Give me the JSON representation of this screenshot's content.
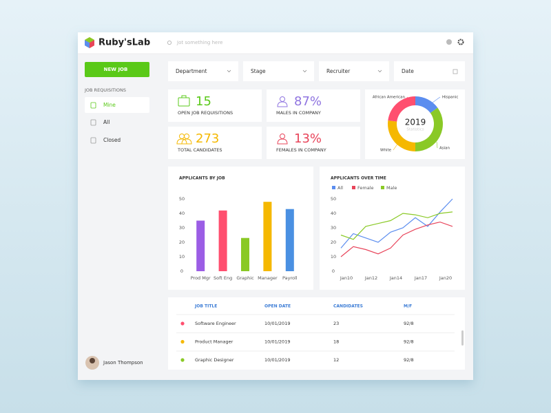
{
  "header": {
    "logo": "Ruby'sLab",
    "search_placeholder": "Jot something here"
  },
  "sidebar": {
    "button": "NEW JOB",
    "section": "JOB REQUISITIONS",
    "nav": [
      "Mine",
      "All",
      "Closed"
    ],
    "user": "Jason Thompson"
  },
  "filters": [
    "Department",
    "Stage",
    "Recruiter",
    "Date"
  ],
  "stats": [
    {
      "value": 15,
      "label": "OPEN JOB REQUISITIONS",
      "color": "#5ac918"
    },
    {
      "value": "87%",
      "label": "MALES IN COMPANY",
      "color": "#8f74e0"
    },
    {
      "value": 273,
      "label": "TOTAL CANDIDATES",
      "color": "#f5b800"
    },
    {
      "value": "13%",
      "label": "FEMALES IN COMPANY",
      "color": "#e8445a"
    }
  ],
  "chart_data": [
    {
      "type": "donut",
      "center_title": "2019",
      "center_subtitle": "Statistics",
      "categories": [
        "Hispanic",
        "Asian",
        "White",
        "African American"
      ],
      "values": [
        15,
        35,
        27,
        23
      ],
      "colors": [
        "#5b8def",
        "#8ac926",
        "#f5b800",
        "#ff4f6f"
      ]
    },
    {
      "type": "bar",
      "title": "APPLICANTS BY JOB",
      "categories": [
        "Prod Mgr",
        "Soft Eng",
        "Graphic",
        "Manager",
        "Payroll"
      ],
      "values": [
        35,
        42,
        23,
        48,
        43
      ],
      "colors": [
        "#9b5de5",
        "#ff4f6f",
        "#8ac926",
        "#f5b800",
        "#4a90e2"
      ],
      "ylim": [
        0,
        50
      ],
      "yticks": [
        0,
        10,
        20,
        30,
        40,
        50
      ]
    },
    {
      "type": "line",
      "title": "APPLICANTS OVER TIME",
      "categories": [
        "Jan10",
        null,
        "Jan12",
        null,
        "Jan14",
        null,
        "Jan17",
        null,
        "Jan20",
        null
      ],
      "series": [
        {
          "name": "All",
          "color": "#5b8def",
          "values": [
            16,
            26,
            23,
            20,
            27,
            30,
            37,
            31,
            41,
            50
          ]
        },
        {
          "name": "Female",
          "color": "#e8445a",
          "values": [
            10,
            17,
            15,
            12,
            16,
            25,
            29,
            32,
            34,
            31
          ]
        },
        {
          "name": "Male",
          "color": "#8ac926",
          "values": [
            25,
            22,
            31,
            33,
            35,
            40,
            39,
            37,
            40,
            41
          ]
        }
      ],
      "ylim": [
        0,
        50
      ],
      "yticks": [
        0,
        10,
        20,
        30,
        40,
        50
      ],
      "legend": "top-left"
    }
  ],
  "table": {
    "columns": [
      "JOB TITLE",
      "OPEN DATE",
      "CANDIDATES",
      "M/F"
    ],
    "rows": [
      {
        "color": "#ff4f6f",
        "cells": [
          "Software Engineer",
          "10/01/2019",
          23,
          "92/8"
        ]
      },
      {
        "color": "#f5b800",
        "cells": [
          "Product Manager",
          "10/01/2019",
          18,
          "92/8"
        ]
      },
      {
        "color": "#8ac926",
        "cells": [
          "Graphic Designer",
          "10/01/2019",
          12,
          "92/8"
        ]
      }
    ]
  }
}
